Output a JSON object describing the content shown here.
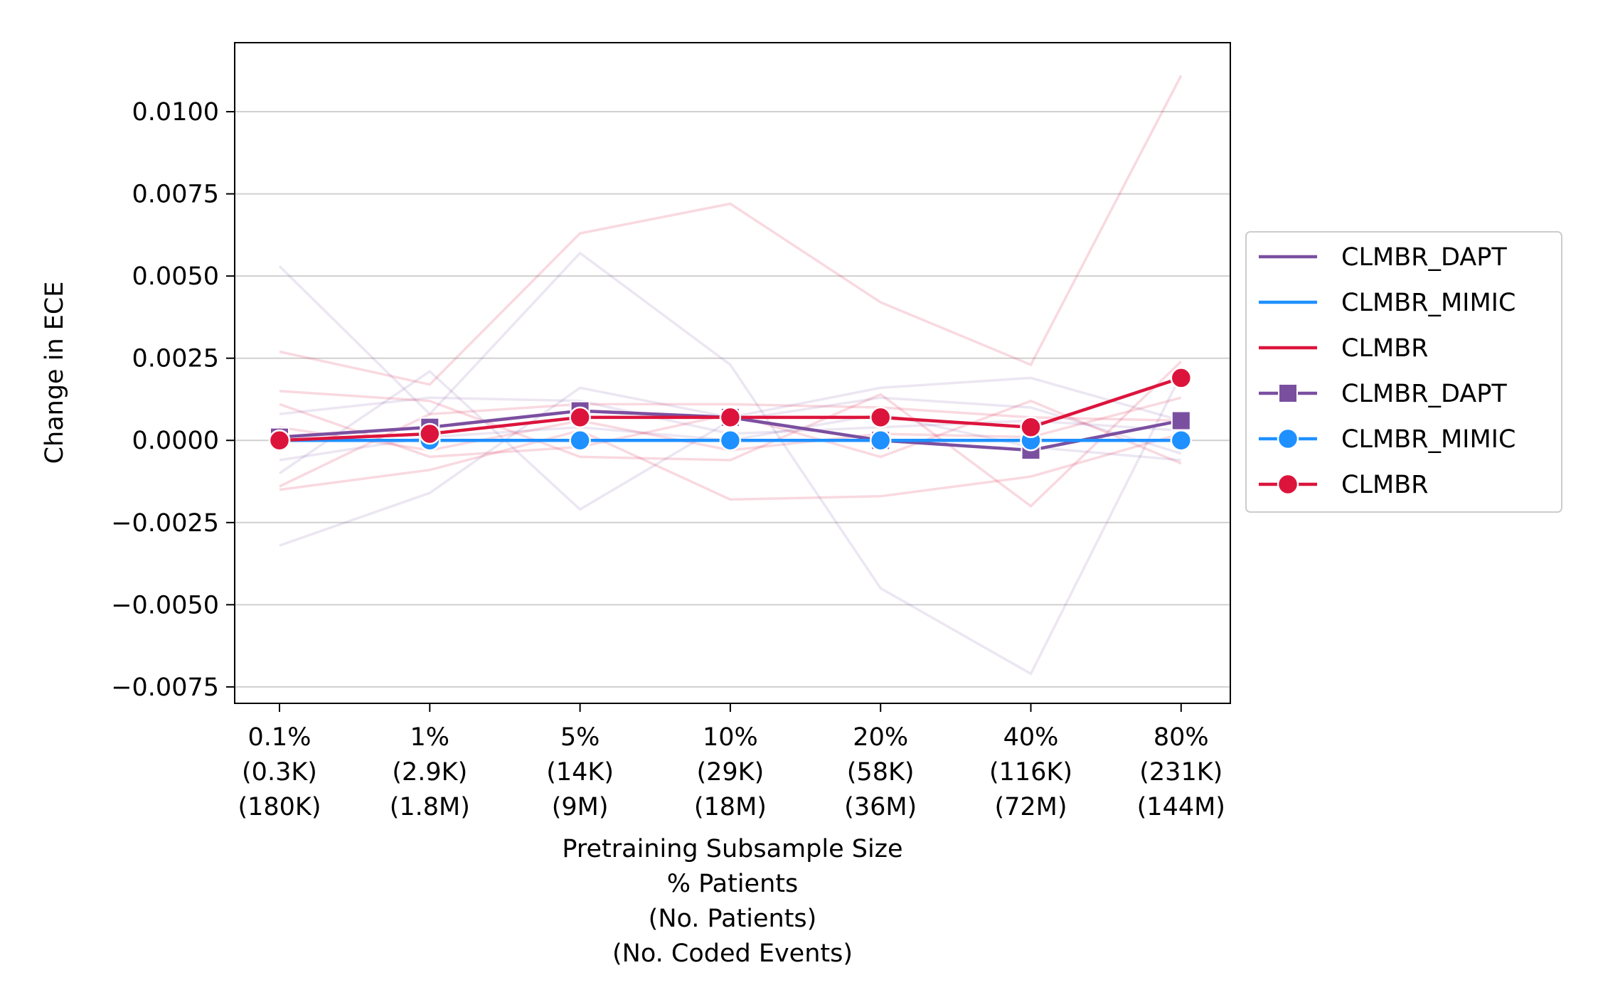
{
  "chart_data": {
    "type": "line",
    "title": "",
    "xlabel_lines": [
      "Pretraining Subsample Size",
      "% Patients",
      "(No. Patients)",
      "(No. Coded Events)"
    ],
    "ylabel": "Change in ECE",
    "categories": [
      [
        "0.1%",
        "(0.3K)",
        "(180K)"
      ],
      [
        "1%",
        "(2.9K)",
        "(1.8M)"
      ],
      [
        "5%",
        "(14K)",
        "(9M)"
      ],
      [
        "10%",
        "(29K)",
        "(18M)"
      ],
      [
        "20%",
        "(58K)",
        "(36M)"
      ],
      [
        "40%",
        "(116K)",
        "(72M)"
      ],
      [
        "80%",
        "(231K)",
        "(144M)"
      ]
    ],
    "ylim": [
      -0.008,
      0.0121
    ],
    "yticks": [
      -0.0075,
      -0.005,
      -0.0025,
      0.0,
      0.0025,
      0.005,
      0.0075,
      0.01
    ],
    "ytick_labels": [
      "−0.0075",
      "−0.0050",
      "−0.0025",
      "0.0000",
      "0.0025",
      "0.0050",
      "0.0075",
      "0.0100"
    ],
    "grid": "horizontal",
    "legend_position": "outside-right",
    "colors": {
      "CLMBR_DAPT": "#7b4fa0",
      "CLMBR_MIMIC": "#1e90ff",
      "CLMBR": "#dc143c"
    },
    "legend": [
      {
        "label": "CLMBR_DAPT",
        "series": "CLMBR_DAPT",
        "kind": "line"
      },
      {
        "label": "CLMBR_MIMIC",
        "series": "CLMBR_MIMIC",
        "kind": "line"
      },
      {
        "label": "CLMBR",
        "series": "CLMBR",
        "kind": "line"
      },
      {
        "label": "CLMBR_DAPT",
        "series": "CLMBR_DAPT",
        "kind": "line-marker",
        "marker": "square"
      },
      {
        "label": "CLMBR_MIMIC",
        "series": "CLMBR_MIMIC",
        "kind": "line-marker",
        "marker": "circle"
      },
      {
        "label": "CLMBR",
        "series": "CLMBR",
        "kind": "line-marker",
        "marker": "circle"
      }
    ],
    "series": [
      {
        "name": "CLMBR_DAPT",
        "marker": "square",
        "values": [
          0.0001,
          0.0004,
          0.0009,
          0.0007,
          0.0,
          -0.0003,
          0.0006
        ]
      },
      {
        "name": "CLMBR_MIMIC",
        "marker": "circle",
        "values": [
          0.0,
          0.0,
          0.0,
          0.0,
          0.0,
          0.0,
          0.0
        ]
      },
      {
        "name": "CLMBR",
        "marker": "circle",
        "values": [
          0.0,
          0.0002,
          0.0007,
          0.0007,
          0.0007,
          0.0004,
          0.0019
        ]
      }
    ],
    "background_series": [
      {
        "group": "CLMBR_DAPT",
        "values": [
          0.0053,
          0.0008,
          0.0057,
          0.0023,
          -0.0045,
          -0.0071,
          0.002
        ]
      },
      {
        "group": "CLMBR_DAPT",
        "values": [
          -0.0032,
          -0.0016,
          0.0016,
          0.0007,
          0.0016,
          0.0019,
          0.0006
        ]
      },
      {
        "group": "CLMBR_DAPT",
        "values": [
          -0.001,
          0.0021,
          -0.0021,
          0.0006,
          0.0013,
          0.001,
          -0.0004
        ]
      },
      {
        "group": "CLMBR_DAPT",
        "values": [
          0.0008,
          0.0013,
          0.0012,
          0.0002,
          0.0004,
          0.0006,
          0.0003
        ]
      },
      {
        "group": "CLMBR_DAPT",
        "values": [
          -0.0006,
          0.0001,
          0.0004,
          0.0,
          0.0008,
          -0.0002,
          -0.0006
        ]
      },
      {
        "group": "CLMBR",
        "values": [
          0.0027,
          0.0017,
          0.0063,
          0.0072,
          0.0042,
          0.0023,
          0.0111
        ]
      },
      {
        "group": "CLMBR",
        "values": [
          0.0015,
          0.0012,
          -0.0005,
          -0.0006,
          0.0014,
          -0.002,
          0.0024
        ]
      },
      {
        "group": "CLMBR",
        "values": [
          -0.0015,
          -0.0009,
          0.0003,
          -0.0018,
          -0.0017,
          -0.0011,
          0.0002
        ]
      },
      {
        "group": "CLMBR",
        "values": [
          0.0011,
          -0.0005,
          -0.0002,
          0.0008,
          -0.0005,
          0.0012,
          -0.0007
        ]
      },
      {
        "group": "CLMBR",
        "values": [
          -0.0014,
          0.0008,
          0.0011,
          0.0011,
          0.001,
          0.0007,
          0.0006
        ]
      },
      {
        "group": "CLMBR",
        "values": [
          0.0004,
          -0.0003,
          0.0006,
          -0.0003,
          0.0002,
          0.0001,
          0.0013
        ]
      }
    ]
  }
}
